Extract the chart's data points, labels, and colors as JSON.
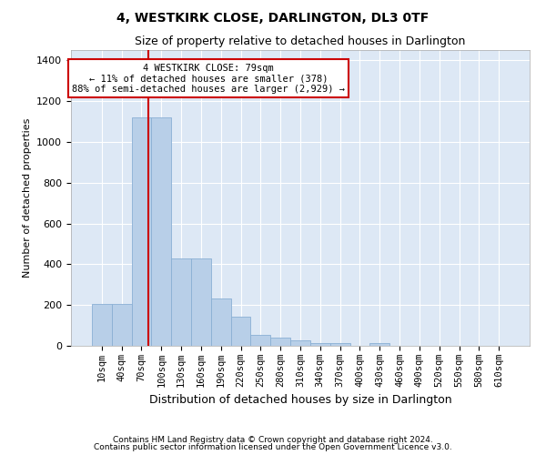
{
  "title": "4, WESTKIRK CLOSE, DARLINGTON, DL3 0TF",
  "subtitle": "Size of property relative to detached houses in Darlington",
  "xlabel": "Distribution of detached houses by size in Darlington",
  "ylabel": "Number of detached properties",
  "footer_line1": "Contains HM Land Registry data © Crown copyright and database right 2024.",
  "footer_line2": "Contains public sector information licensed under the Open Government Licence v3.0.",
  "bar_labels": [
    "10sqm",
    "40sqm",
    "70sqm",
    "100sqm",
    "130sqm",
    "160sqm",
    "190sqm",
    "220sqm",
    "250sqm",
    "280sqm",
    "310sqm",
    "340sqm",
    "370sqm",
    "400sqm",
    "430sqm",
    "460sqm",
    "490sqm",
    "520sqm",
    "550sqm",
    "580sqm",
    "610sqm"
  ],
  "bar_heights": [
    207,
    207,
    1120,
    1120,
    430,
    430,
    230,
    145,
    55,
    40,
    25,
    12,
    12,
    0,
    15,
    0,
    0,
    0,
    0,
    0,
    0
  ],
  "ylim": [
    0,
    1450
  ],
  "yticks": [
    0,
    200,
    400,
    600,
    800,
    1000,
    1200,
    1400
  ],
  "bar_color": "#b8cfe8",
  "bar_edge_color": "#8aafd4",
  "vline_x": 2.35,
  "vline_color": "#cc0000",
  "annotation_text": "4 WESTKIRK CLOSE: 79sqm\n← 11% of detached houses are smaller (378)\n88% of semi-detached houses are larger (2,929) →",
  "annotation_box_edgecolor": "#cc0000",
  "background_color": "#dde8f5",
  "plot_bg_color": "#dde8f5",
  "title_fontsize": 10,
  "subtitle_fontsize": 9,
  "annot_fontsize": 7.5,
  "footer_fontsize": 6.5,
  "ylabel_fontsize": 8,
  "xlabel_fontsize": 9
}
